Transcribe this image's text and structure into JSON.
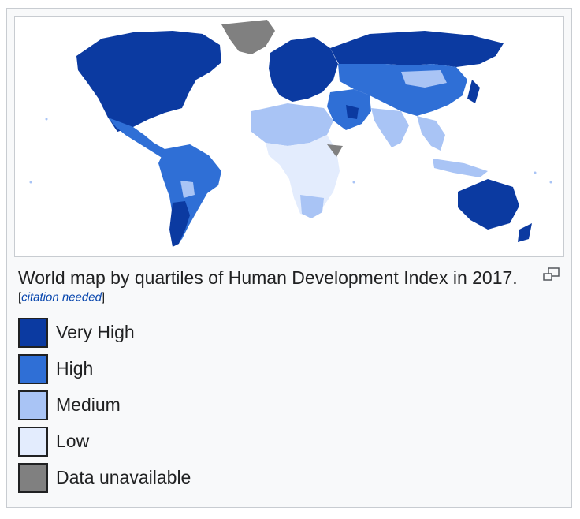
{
  "caption": {
    "text": "World map by quartiles of Human Development Index in 2017.",
    "citation_open": "[",
    "citation": "citation needed",
    "citation_close": "]"
  },
  "legend": [
    {
      "label": "Very High",
      "color": "#0b3aa1"
    },
    {
      "label": "High",
      "color": "#2f6fd6"
    },
    {
      "label": "Medium",
      "color": "#a9c4f5"
    },
    {
      "label": "Low",
      "color": "#e3ecfd"
    },
    {
      "label": "Data unavailable",
      "color": "#808080"
    }
  ],
  "icons": {
    "magnify": "enlarge-icon"
  }
}
